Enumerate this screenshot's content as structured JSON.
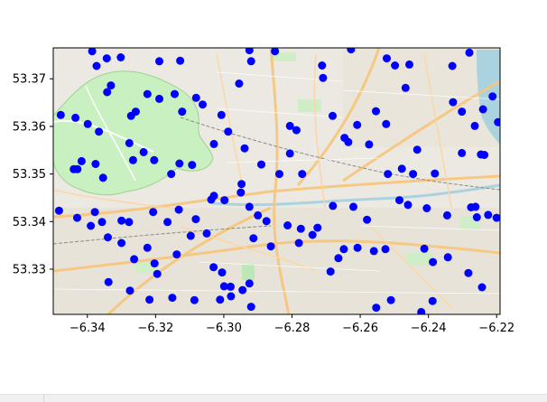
{
  "chart_data": {
    "type": "scatter",
    "title": "",
    "xlabel": "",
    "ylabel": "",
    "xlim": [
      -6.35,
      -6.219
    ],
    "ylim": [
      53.3205,
      53.3765
    ],
    "xticks": [
      -6.34,
      -6.32,
      -6.3,
      -6.28,
      -6.26,
      -6.24,
      -6.22
    ],
    "xtick_labels": [
      "−6.34",
      "−6.32",
      "−6.30",
      "−6.28",
      "−6.26",
      "−6.24",
      "−6.22"
    ],
    "yticks": [
      53.33,
      53.34,
      53.35,
      53.36,
      53.37
    ],
    "ytick_labels": [
      "53.33",
      "53.34",
      "53.35",
      "53.36",
      "53.37"
    ],
    "grid": false,
    "background": "street map basemap",
    "marker_color": "#0000ff",
    "series": [
      {
        "marker": "circle",
        "points": [
          [
            -6.3386,
            53.3758
          ],
          [
            -6.3373,
            53.3727
          ],
          [
            -6.3343,
            53.3743
          ],
          [
            -6.3302,
            53.3745
          ],
          [
            -6.3189,
            53.3737
          ],
          [
            -6.3128,
            53.3738
          ],
          [
            -6.2925,
            53.376
          ],
          [
            -6.292,
            53.3737
          ],
          [
            -6.285,
            53.3758
          ],
          [
            -6.2712,
            53.3728
          ],
          [
            -6.2627,
            53.3762
          ],
          [
            -6.2522,
            53.3743
          ],
          [
            -6.2456,
            53.373
          ],
          [
            -6.233,
            53.3727
          ],
          [
            -6.228,
            53.3755
          ],
          [
            -6.3478,
            53.3624
          ],
          [
            -6.3435,
            53.3618
          ],
          [
            -6.3399,
            53.3605
          ],
          [
            -6.3366,
            53.3589
          ],
          [
            -6.3342,
            53.3672
          ],
          [
            -6.3331,
            53.3686
          ],
          [
            -6.3272,
            53.3622
          ],
          [
            -6.3258,
            53.3631
          ],
          [
            -6.3224,
            53.3668
          ],
          [
            -6.3189,
            53.3658
          ],
          [
            -6.3144,
            53.3668
          ],
          [
            -6.3122,
            53.3631
          ],
          [
            -6.3081,
            53.366
          ],
          [
            -6.3062,
            53.3646
          ],
          [
            -6.3007,
            53.3624
          ],
          [
            -6.2955,
            53.369
          ],
          [
            -6.2806,
            53.3601
          ],
          [
            -6.2787,
            53.3592
          ],
          [
            -6.2709,
            53.3702
          ],
          [
            -6.2681,
            53.3622
          ],
          [
            -6.2609,
            53.3603
          ],
          [
            -6.2554,
            53.3632
          ],
          [
            -6.2524,
            53.3605
          ],
          [
            -6.2498,
            53.3728
          ],
          [
            -6.2467,
            53.3681
          ],
          [
            -6.2328,
            53.3651
          ],
          [
            -6.2302,
            53.3631
          ],
          [
            -6.2264,
            53.3601
          ],
          [
            -6.224,
            53.3636
          ],
          [
            -6.2212,
            53.3663
          ],
          [
            -6.2196,
            53.3609
          ],
          [
            -6.344,
            53.351
          ],
          [
            -6.3429,
            53.351
          ],
          [
            -6.3417,
            53.3527
          ],
          [
            -6.3376,
            53.3521
          ],
          [
            -6.3354,
            53.3492
          ],
          [
            -6.3277,
            53.3565
          ],
          [
            -6.3266,
            53.3529
          ],
          [
            -6.3235,
            53.3546
          ],
          [
            -6.3204,
            53.3529
          ],
          [
            -6.3154,
            53.35
          ],
          [
            -6.313,
            53.3522
          ],
          [
            -6.3093,
            53.3519
          ],
          [
            -6.3029,
            53.3563
          ],
          [
            -6.2987,
            53.3589
          ],
          [
            -6.2939,
            53.3554
          ],
          [
            -6.289,
            53.352
          ],
          [
            -6.2837,
            53.35
          ],
          [
            -6.2806,
            53.3543
          ],
          [
            -6.277,
            53.35
          ],
          [
            -6.2646,
            53.3576
          ],
          [
            -6.2635,
            53.3567
          ],
          [
            -6.2574,
            53.3562
          ],
          [
            -6.2519,
            53.35
          ],
          [
            -6.2478,
            53.3511
          ],
          [
            -6.2445,
            53.35
          ],
          [
            -6.2433,
            53.3551
          ],
          [
            -6.2381,
            53.3501
          ],
          [
            -6.2302,
            53.3544
          ],
          [
            -6.2246,
            53.3541
          ],
          [
            -6.2236,
            53.354
          ],
          [
            -6.3483,
            53.3423
          ],
          [
            -6.343,
            53.3408
          ],
          [
            -6.3378,
            53.342
          ],
          [
            -6.3357,
            53.3399
          ],
          [
            -6.33,
            53.3402
          ],
          [
            -6.3278,
            53.3399
          ],
          [
            -6.3207,
            53.342
          ],
          [
            -6.3165,
            53.3399
          ],
          [
            -6.3132,
            53.3425
          ],
          [
            -6.3082,
            53.3405
          ],
          [
            -6.3037,
            53.3446
          ],
          [
            -6.3029,
            53.3454
          ],
          [
            -6.2998,
            53.3445
          ],
          [
            -6.295,
            53.3461
          ],
          [
            -6.2948,
            53.3479
          ],
          [
            -6.2925,
            53.3431
          ],
          [
            -6.29,
            53.3413
          ],
          [
            -6.2875,
            53.3401
          ],
          [
            -6.2813,
            53.3392
          ],
          [
            -6.2774,
            53.3385
          ],
          [
            -6.2725,
            53.3387
          ],
          [
            -6.268,
            53.3433
          ],
          [
            -6.262,
            53.3431
          ],
          [
            -6.258,
            53.3404
          ],
          [
            -6.2485,
            53.3445
          ],
          [
            -6.246,
            53.3435
          ],
          [
            -6.2405,
            53.3428
          ],
          [
            -6.2345,
            53.3413
          ],
          [
            -6.2275,
            53.343
          ],
          [
            -6.2262,
            53.3431
          ],
          [
            -6.2258,
            53.3409
          ],
          [
            -6.2225,
            53.3414
          ],
          [
            -6.22,
            53.3408
          ],
          [
            -6.339,
            53.3391
          ],
          [
            -6.334,
            53.3367
          ],
          [
            -6.33,
            53.3355
          ],
          [
            -6.3263,
            53.3321
          ],
          [
            -6.3224,
            53.3345
          ],
          [
            -6.3203,
            53.3312
          ],
          [
            -6.3195,
            53.329
          ],
          [
            -6.3138,
            53.3331
          ],
          [
            -6.3097,
            53.337
          ],
          [
            -6.305,
            53.3375
          ],
          [
            -6.303,
            53.3304
          ],
          [
            -6.3005,
            53.3293
          ],
          [
            -6.298,
            53.3263
          ],
          [
            -6.2925,
            53.327
          ],
          [
            -6.2913,
            53.3365
          ],
          [
            -6.2862,
            53.3348
          ],
          [
            -6.278,
            53.3355
          ],
          [
            -6.274,
            53.3372
          ],
          [
            -6.2664,
            53.3323
          ],
          [
            -6.2648,
            53.3342
          ],
          [
            -6.2608,
            53.3345
          ],
          [
            -6.256,
            53.3338
          ],
          [
            -6.2526,
            53.3342
          ],
          [
            -6.2412,
            53.3343
          ],
          [
            -6.2387,
            53.3315
          ],
          [
            -6.2343,
            53.3325
          ],
          [
            -6.2283,
            53.3292
          ],
          [
            -6.2243,
            53.3262
          ],
          [
            -6.3338,
            53.3273
          ],
          [
            -6.3275,
            53.3255
          ],
          [
            -6.3218,
            53.3236
          ],
          [
            -6.3151,
            53.324
          ],
          [
            -6.3086,
            53.3235
          ],
          [
            -6.3011,
            53.3236
          ],
          [
            -6.2999,
            53.3264
          ],
          [
            -6.2979,
            53.3243
          ],
          [
            -6.2945,
            53.3256
          ],
          [
            -6.292,
            53.3221
          ],
          [
            -6.2687,
            53.3295
          ],
          [
            -6.2553,
            53.3219
          ],
          [
            -6.251,
            53.3235
          ],
          [
            -6.2421,
            53.321
          ],
          [
            -6.2388,
            53.3233
          ]
        ]
      }
    ]
  }
}
